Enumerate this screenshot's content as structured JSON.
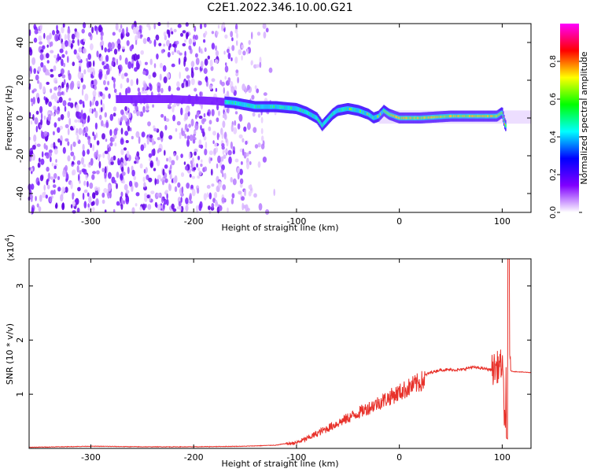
{
  "title": "C2E1.2022.346.10.00.G21",
  "chart_data": [
    {
      "type": "heatmap",
      "name": "spectrogram",
      "xlabel": "Height of straight line (km)",
      "ylabel": "Frequency (Hz)",
      "xlim": [
        -360,
        128
      ],
      "ylim": [
        -50,
        50
      ],
      "xticks": [
        -300,
        -200,
        -100,
        0,
        100
      ],
      "yticks": [
        -40,
        -20,
        0,
        20,
        40
      ],
      "colorbar": {
        "label": "Normalized spectral amplitude",
        "range": [
          0,
          1
        ],
        "ticks": [
          0.0,
          0.2,
          0.4,
          0.6,
          0.8
        ],
        "colormap": [
          "#ff00ff",
          "#ff0000",
          "#ffff00",
          "#00ff00",
          "#00ffff",
          "#0000ff",
          "#8000ff",
          "#ffffff"
        ]
      },
      "signal_track": {
        "x": [
          -275,
          -250,
          -220,
          -180,
          -160,
          -140,
          -120,
          -100,
          -90,
          -80,
          -75,
          -70,
          -65,
          -60,
          -50,
          -40,
          -30,
          -25,
          -20,
          -15,
          -10,
          0,
          20,
          50,
          80,
          95,
          100,
          103
        ],
        "y": [
          10,
          10,
          10,
          9,
          8,
          6,
          6,
          5,
          3,
          0,
          -4,
          -1,
          2,
          4,
          5,
          4,
          2,
          0,
          1,
          4,
          2,
          0,
          0,
          1,
          1,
          1,
          3,
          -4
        ]
      }
    },
    {
      "type": "line",
      "name": "snr",
      "xlabel": "Height of straight line (km)",
      "ylabel": "SNR (10 * v/v)",
      "multiplier": "(x10",
      "multiplier_exp": "4",
      "xlim": [
        -360,
        128
      ],
      "ylim": [
        0,
        3.5
      ],
      "xticks": [
        -300,
        -200,
        -100,
        0,
        100
      ],
      "yticks": [
        1,
        2,
        3
      ],
      "color": "#e8312a",
      "series": [
        {
          "x": [
            -360,
            -300,
            -250,
            -200,
            -150,
            -120,
            -100,
            -90,
            -80,
            -70,
            -60,
            -50,
            -40,
            -30,
            -20,
            -10,
            0,
            10,
            20,
            30,
            40,
            50,
            60,
            70,
            80,
            90,
            95,
            100,
            103,
            105,
            107,
            110,
            128
          ],
          "y": [
            0.02,
            0.04,
            0.03,
            0.03,
            0.04,
            0.06,
            0.12,
            0.2,
            0.3,
            0.4,
            0.5,
            0.6,
            0.7,
            0.8,
            0.9,
            1.0,
            1.1,
            1.2,
            1.3,
            1.4,
            1.45,
            1.45,
            1.45,
            1.5,
            1.48,
            1.45,
            1.5,
            1.55,
            0.3,
            3.5,
            1.45,
            1.42,
            1.4
          ]
        }
      ]
    }
  ]
}
